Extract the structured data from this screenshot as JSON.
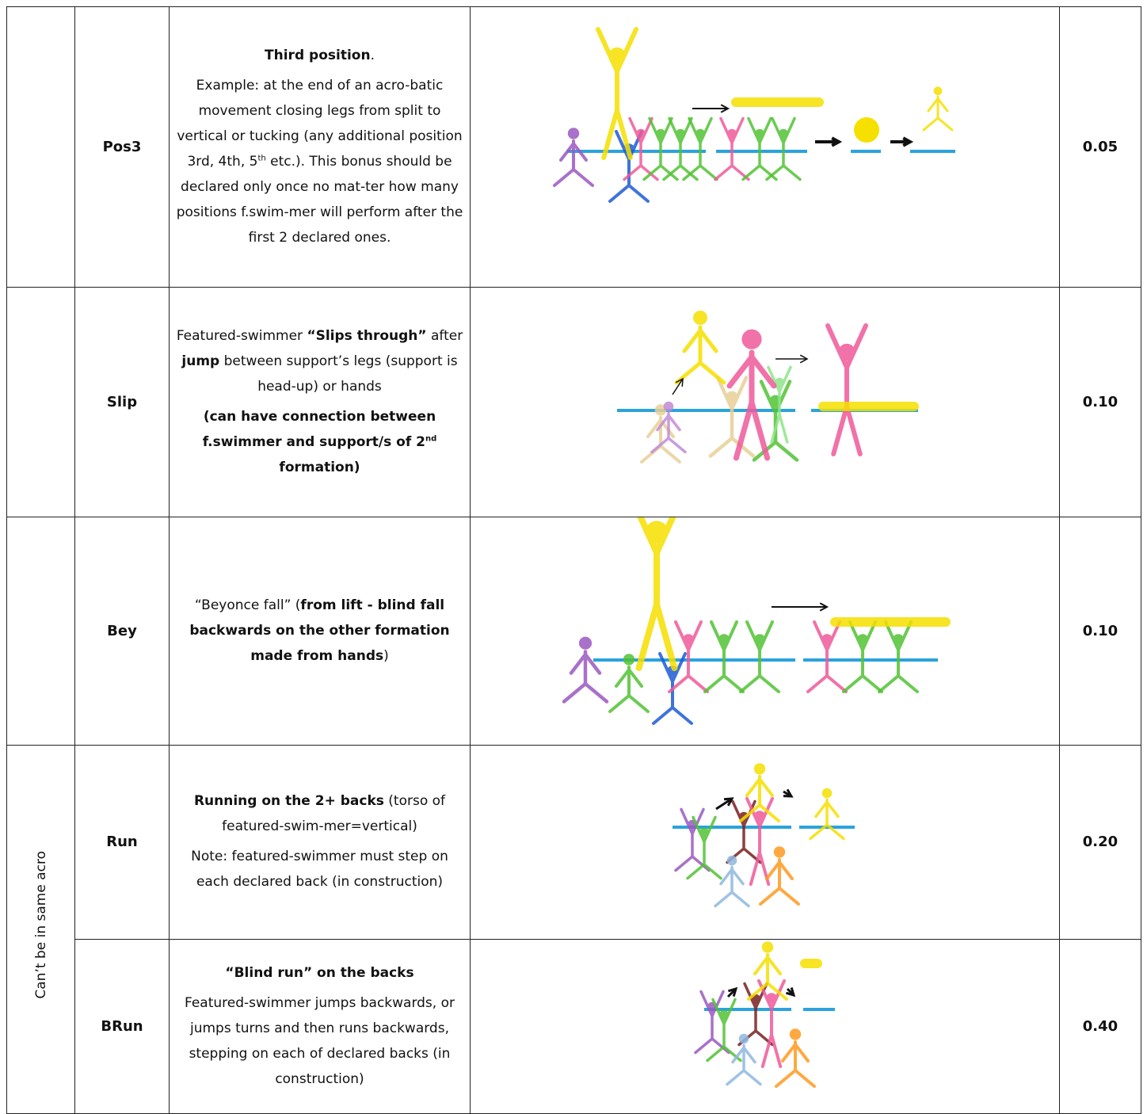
{
  "table": {
    "rows": [
      {
        "code": "Pos3",
        "value": "0.05",
        "description": [
          [
            {
              "text": "Third position",
              "bold": true
            },
            {
              "text": "."
            }
          ],
          [
            {
              "text": "Example: at the end of an acro-batic movement closing legs from split to vertical or tucking (any additional position 3rd, 4th, 5"
            },
            {
              "text": "th",
              "sup": true
            },
            {
              "text": " etc.). This bonus should be declared only once no mat-ter how many positions f.swim-mer will perform after the first 2 declared ones."
            }
          ]
        ]
      },
      {
        "code": "Slip",
        "value": "0.10",
        "description": [
          [
            {
              "text": "Featured-swimmer "
            },
            {
              "text": "“Slips through”",
              "bold": true
            },
            {
              "text": " after "
            },
            {
              "text": "jump",
              "bold": true
            },
            {
              "text": " between support’s legs (support is head-up) or hands"
            }
          ],
          [
            {
              "text": "(can have connection between f.swimmer and support/s of 2",
              "bold": true
            },
            {
              "text": "nd",
              "bold": true,
              "sup": true
            },
            {
              "text": " formation)",
              "bold": true
            }
          ]
        ]
      },
      {
        "code": "Bey",
        "value": "0.10",
        "description": [
          [
            {
              "text": "“Beyonce fall” ("
            },
            {
              "text": "from lift - blind fall backwards on the other formation made from hands",
              "bold": true
            },
            {
              "text": ")"
            }
          ]
        ]
      }
    ],
    "group": {
      "label": "Can’t be in same acro",
      "rows": [
        {
          "code": "Run",
          "value": "0.20",
          "description": [
            [
              {
                "text": "Running on the 2+ backs",
                "bold": true
              },
              {
                "text": " (torso of featured-swim-mer=vertical)"
              }
            ],
            [
              {
                "text": "Note: featured-swimmer must step on each declared back (in construction)"
              }
            ]
          ]
        },
        {
          "code": "BRun",
          "value": "0.40",
          "description": [
            [
              {
                "text": "“Blind run” on the backs",
                "bold": true
              }
            ],
            [
              {
                "text": "Featured-swimmer jumps backwards, or jumps turns and then runs backwards, stepping on each of declared backs (in construction)"
              }
            ]
          ]
        }
      ]
    }
  }
}
